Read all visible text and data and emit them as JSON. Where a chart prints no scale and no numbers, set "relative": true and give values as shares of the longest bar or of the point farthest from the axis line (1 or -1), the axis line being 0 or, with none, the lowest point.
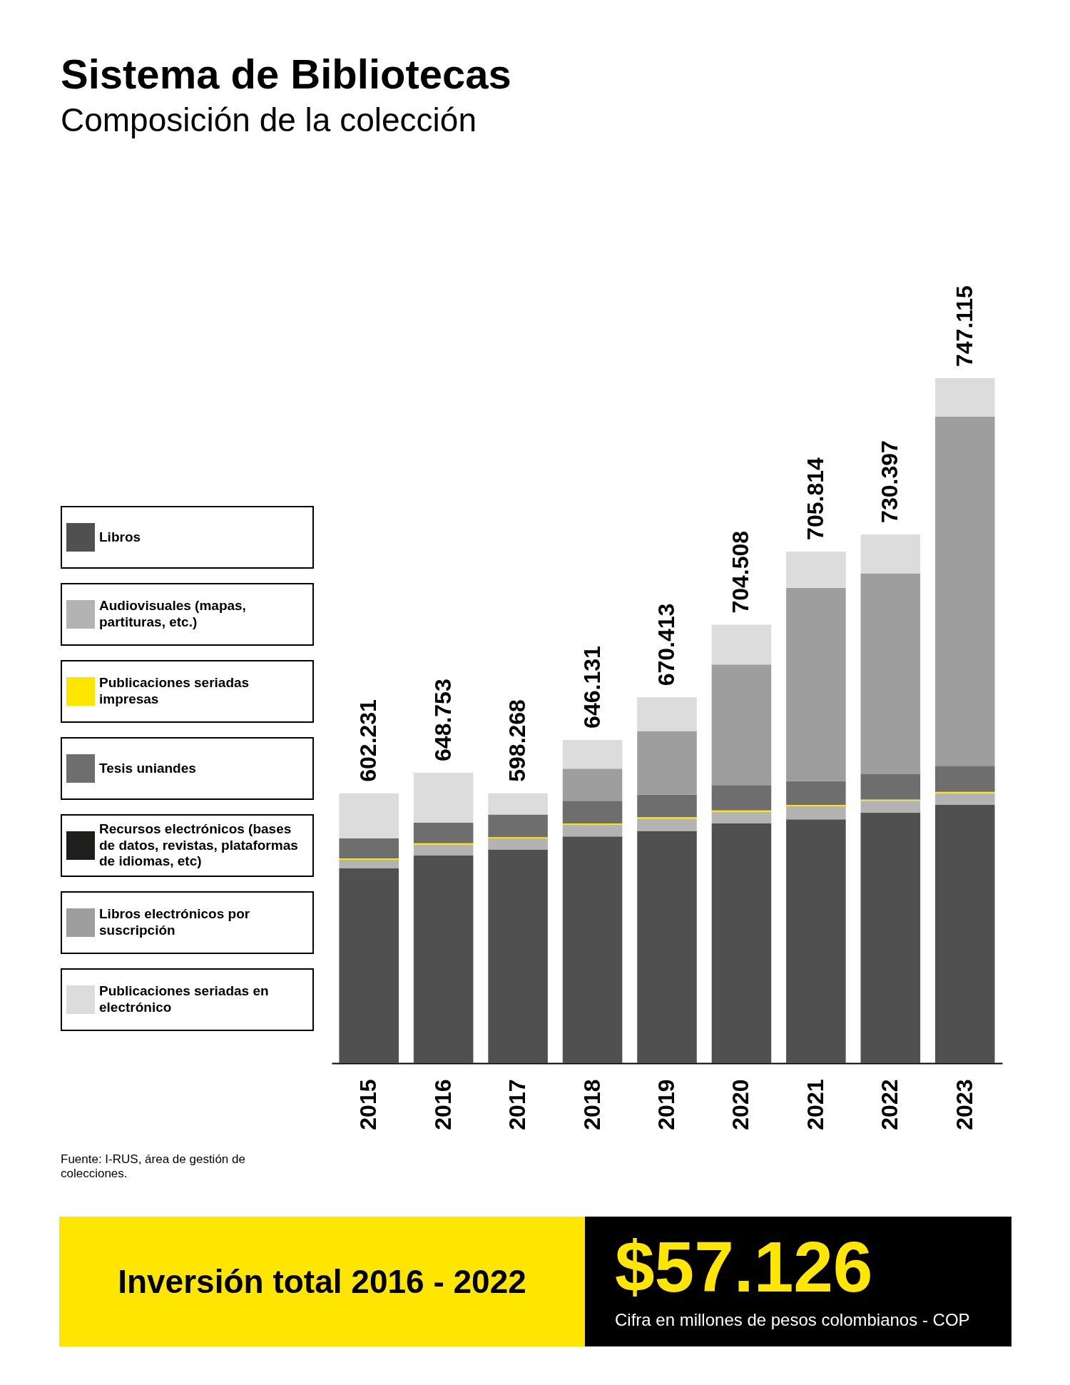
{
  "chart_data": {
    "type": "bar",
    "title": "Sistema de Bibliotecas",
    "subtitle": "Composición de la colección",
    "categories": [
      "2015",
      "2016",
      "2017",
      "2018",
      "2019",
      "2020",
      "2021",
      "2022",
      "2023"
    ],
    "stacked": true,
    "relative": true,
    "legend": "left",
    "grid": false,
    "series": [
      {
        "name": "Libros",
        "color": "#505050",
        "values": [
          0.285,
          0.303,
          0.312,
          0.331,
          0.339,
          0.35,
          0.356,
          0.366,
          0.377
        ]
      },
      {
        "name": "Audiovisuales (mapas, partituras, etc.)",
        "color": "#b3b3b3",
        "values": [
          0.012,
          0.016,
          0.016,
          0.017,
          0.018,
          0.017,
          0.019,
          0.017,
          0.017
        ]
      },
      {
        "name": "Publicaciones seriadas impresas",
        "color": "#ffe600",
        "values": [
          0.002,
          0.002,
          0.002,
          0.002,
          0.002,
          0.002,
          0.002,
          0.002,
          0.002
        ]
      },
      {
        "name": "Tesis uniandes",
        "color": "#6e6e6e",
        "values": [
          0.029,
          0.03,
          0.033,
          0.033,
          0.033,
          0.037,
          0.035,
          0.037,
          0.038
        ]
      },
      {
        "name": "Recursos electrónicos (bases de datos, revistas, plataformas de idiomas, etc)",
        "color": "#1e1f1c",
        "values": [
          null,
          null,
          null,
          null,
          null,
          null,
          null,
          null,
          null
        ]
      },
      {
        "name": "Libros electrónicos por suscripción",
        "color": "#9e9e9e",
        "values": [
          null,
          null,
          null,
          0.047,
          0.093,
          0.176,
          0.282,
          0.293,
          0.51
        ]
      },
      {
        "name": "Publicaciones seriadas en electrónico",
        "color": "#dcdcdc",
        "values": [
          0.066,
          0.073,
          0.031,
          0.042,
          0.049,
          0.058,
          0.053,
          0.057,
          0.056
        ]
      }
    ],
    "annotations": [
      {
        "text": "602.231",
        "x": "2015",
        "y": 0.394
      },
      {
        "text": "648.753",
        "x": "2016",
        "y": 0.424
      },
      {
        "text": "598.268",
        "x": "2017",
        "y": 0.394
      },
      {
        "text": "646.131",
        "x": "2018",
        "y": 0.472
      },
      {
        "text": "670.413",
        "x": "2019",
        "y": 0.534
      },
      {
        "text": "704.508",
        "x": "2020",
        "y": 0.64
      },
      {
        "text": "705.814",
        "x": "2021",
        "y": 0.747
      },
      {
        "text": "730.397",
        "x": "2022",
        "y": 0.772
      },
      {
        "text": "747.115",
        "x": "2023",
        "y": 1.0
      },
      "Fuente: I-RUS, área de gestión de colecciones.",
      "Inversión total 2016 - 2022",
      "$57.126",
      "Cifra en millones de pesos colombianos - COP"
    ]
  }
}
